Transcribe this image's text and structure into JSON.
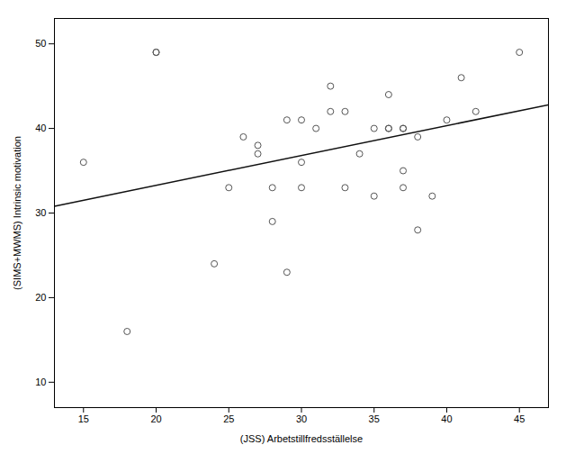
{
  "chart_data": {
    "type": "scatter",
    "xlabel": "(JSS) Arbetstillfredsställelse",
    "ylabel": "(SIMS+MWMS) Intrinsic motivation",
    "xlim": [
      13,
      47
    ],
    "ylim": [
      7,
      53
    ],
    "xticks": [
      15,
      20,
      25,
      30,
      35,
      40,
      45
    ],
    "yticks": [
      10,
      20,
      30,
      40,
      50
    ],
    "grid": false,
    "series": [
      {
        "type": "scatter",
        "marker": "open_circle",
        "color": "#555555",
        "x": [
          15,
          18,
          20,
          20,
          24,
          25,
          26,
          27,
          27,
          28,
          28,
          29,
          29,
          30,
          30,
          30,
          31,
          32,
          32,
          33,
          33,
          34,
          35,
          35,
          36,
          36,
          36,
          37,
          37,
          37,
          37,
          38,
          38,
          39,
          40,
          41,
          42,
          45
        ],
        "values": [
          36,
          16,
          49,
          49,
          24,
          33,
          39,
          37,
          38,
          29,
          33,
          23,
          41,
          41,
          33,
          36,
          40,
          45,
          42,
          42,
          33,
          37,
          32,
          40,
          44,
          40,
          40,
          35,
          33,
          40,
          40,
          28,
          39,
          32,
          41,
          46,
          42,
          49
        ]
      },
      {
        "type": "line",
        "line_style": "solid",
        "color": "#111111",
        "x": [
          13,
          47
        ],
        "values": [
          30.8,
          42.8
        ]
      }
    ]
  }
}
